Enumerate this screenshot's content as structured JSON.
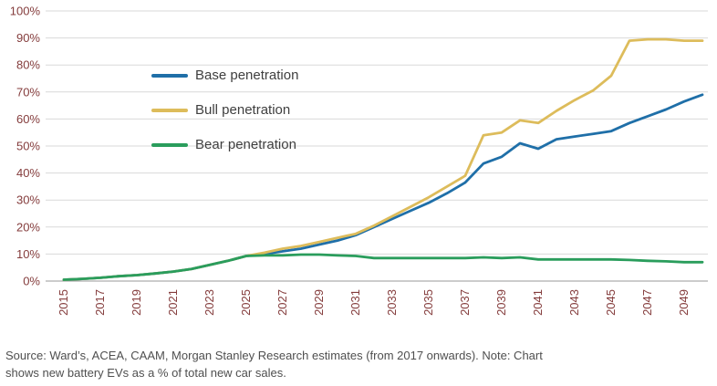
{
  "chart_data": {
    "type": "line",
    "title": "",
    "xlabel": "",
    "ylabel": "",
    "x": [
      2015,
      2016,
      2017,
      2018,
      2019,
      2020,
      2021,
      2022,
      2023,
      2024,
      2025,
      2026,
      2027,
      2028,
      2029,
      2030,
      2031,
      2032,
      2033,
      2034,
      2035,
      2036,
      2037,
      2038,
      2039,
      2040,
      2041,
      2042,
      2043,
      2044,
      2045,
      2046,
      2047,
      2048,
      2049,
      2050
    ],
    "series": [
      {
        "name": "Base penetration",
        "color": "#1f6fa8",
        "values": [
          0.5,
          0.8,
          1.2,
          1.8,
          2.2,
          2.8,
          3.5,
          4.5,
          6,
          7.5,
          9.3,
          10,
          11,
          12,
          13.5,
          15,
          17,
          20,
          23,
          26,
          29,
          32.5,
          36.5,
          43.5,
          46,
          51,
          49,
          52.5,
          53.5,
          54.5,
          55.5,
          58.5,
          61,
          63.5,
          66.5,
          69
        ]
      },
      {
        "name": "Bull penetration",
        "color": "#ddbc5b",
        "values": [
          0.5,
          0.8,
          1.2,
          1.8,
          2.2,
          2.8,
          3.5,
          4.5,
          6,
          7.5,
          9.3,
          10.5,
          12,
          13,
          14.5,
          16,
          17.5,
          20.5,
          24,
          27.5,
          31,
          35,
          39,
          54,
          55,
          59.5,
          58.5,
          63,
          67,
          70.5,
          76,
          89,
          89.5,
          89.5,
          89,
          89
        ]
      },
      {
        "name": "Bear penetration",
        "color": "#2a9d5c",
        "values": [
          0.5,
          0.8,
          1.2,
          1.8,
          2.2,
          2.8,
          3.5,
          4.5,
          6,
          7.5,
          9.3,
          9.5,
          9.5,
          9.8,
          9.8,
          9.5,
          9.3,
          8.5,
          8.5,
          8.5,
          8.5,
          8.5,
          8.5,
          8.8,
          8.5,
          8.8,
          8,
          8,
          8,
          8,
          8,
          7.8,
          7.5,
          7.3,
          7,
          7
        ]
      }
    ],
    "ylim": [
      0,
      100
    ],
    "ytick_step": 10,
    "ytick_suffix": "%",
    "xtick_labels": [
      "2015",
      "2017",
      "2019",
      "2021",
      "2023",
      "2025",
      "2027",
      "2029",
      "2031",
      "2033",
      "2035",
      "2037",
      "2039",
      "2041",
      "2043",
      "2045",
      "2047",
      "2049"
    ],
    "grid": true,
    "legend_position": "upper-left"
  },
  "style": {
    "axis_label_color": "#843c3c",
    "gridline_color": "#d9d9d9",
    "axis_line_color": "#9a9a9a"
  },
  "footer": {
    "line1": "Source: Ward’s, ACEA, CAAM, Morgan Stanley Research estimates (from 2017 onwards). Note: Chart",
    "line2": "shows new battery EVs as a % of total new car sales."
  }
}
